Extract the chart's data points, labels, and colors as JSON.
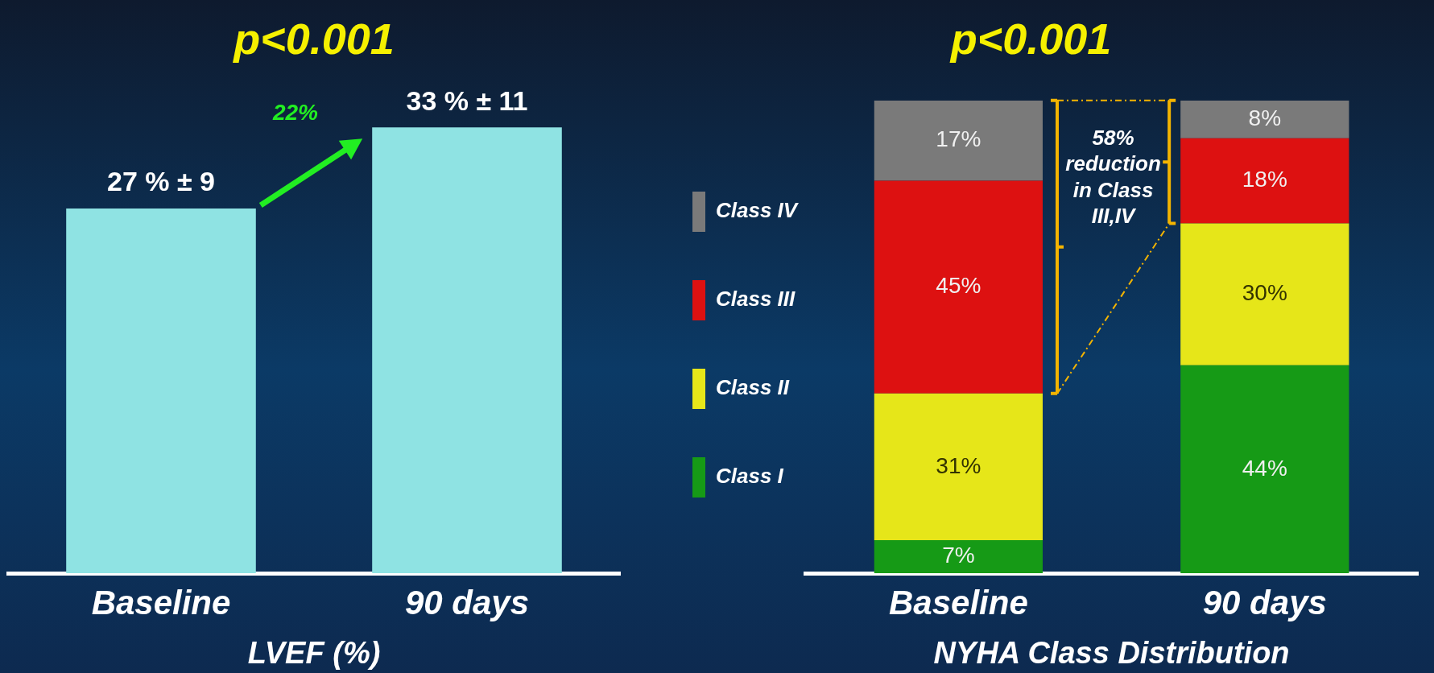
{
  "chart_data": [
    {
      "type": "bar",
      "title": "p<0.001",
      "xlabel": "LVEF (%)",
      "categories": [
        "Baseline",
        "90 days"
      ],
      "values": [
        27,
        33
      ],
      "color": "#8fe3e3",
      "value_labels": [
        "27 % ± 9",
        "33 % ± 11"
      ],
      "annotations": [
        "22%"
      ],
      "legend": false,
      "grid": false,
      "tick_labels": "x"
    },
    {
      "type": "bar",
      "stacked": true,
      "title": "p<0.001",
      "xlabel": "NYHA Class Distribution",
      "categories": [
        "Baseline",
        "90 days"
      ],
      "series": [
        {
          "name": "Class I",
          "color": "#169a16",
          "values": [
            7,
            44
          ],
          "value_labels": [
            "7%",
            "44%"
          ]
        },
        {
          "name": "Class II",
          "color": "#e6e619",
          "values": [
            31,
            30
          ],
          "value_labels": [
            "31%",
            "30%"
          ]
        },
        {
          "name": "Class III",
          "color": "#dd1111",
          "values": [
            45,
            18
          ],
          "value_labels": [
            "45%",
            "18%"
          ]
        },
        {
          "name": "Class IV",
          "color": "#7a7a7a",
          "values": [
            17,
            8
          ],
          "value_labels": [
            "17%",
            "8%"
          ]
        }
      ],
      "annotations": [
        "58% reduction in Class III,IV"
      ],
      "legend": "left",
      "grid": false,
      "tick_labels": "x"
    }
  ]
}
